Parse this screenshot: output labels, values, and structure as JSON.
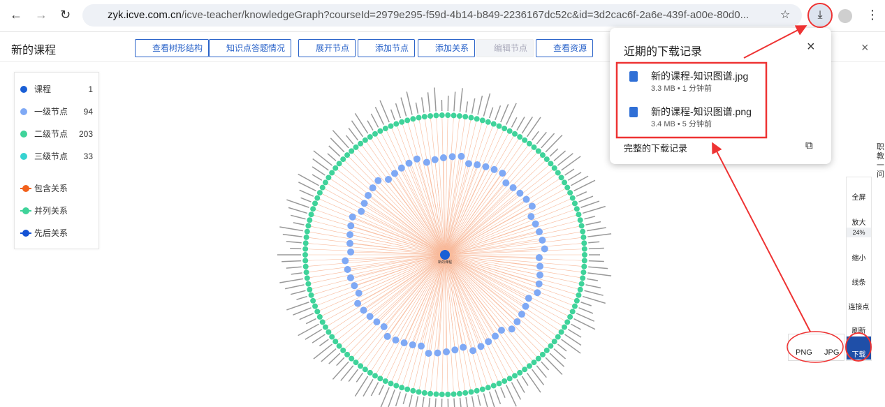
{
  "browser": {
    "url_host": "zyk.icve.com.cn",
    "url_path": "/icve-teacher/knowledgeGraph?courseId=2979e295-f59d-4b14-b849-2236167dc52c&id=3d2cac6f-2a6e-439f-a00e-80d0..."
  },
  "header": {
    "title": "新的课程",
    "buttons": [
      "查看树形结构",
      "知识点答题情况",
      "展开节点",
      "添加节点",
      "添加关系",
      "编辑节点",
      "查看资源"
    ]
  },
  "legend": {
    "nodes": [
      {
        "name": "课程",
        "count": 1
      },
      {
        "name": "一级节点",
        "count": 94
      },
      {
        "name": "二级节点",
        "count": 203
      },
      {
        "name": "三级节点",
        "count": 33
      }
    ],
    "relations": [
      "包含关系",
      "并列关系",
      "先后关系"
    ]
  },
  "graph": {
    "center_label": "新的课程"
  },
  "downloads": {
    "title": "近期的下载记录",
    "items": [
      {
        "name": "新的课程-知识图谱.jpg",
        "meta": "3.3 MB • 1 分钟前"
      },
      {
        "name": "新的课程-知识图谱.png",
        "meta": "3.4 MB • 5 分钟前"
      }
    ],
    "footer": "完整的下载记录"
  },
  "tools": [
    "全屏",
    "放大",
    "24%",
    "缩小",
    "线条",
    "连接点",
    "刷新",
    "下载"
  ],
  "export": [
    "PNG",
    "JPG"
  ],
  "side": "职教一问"
}
